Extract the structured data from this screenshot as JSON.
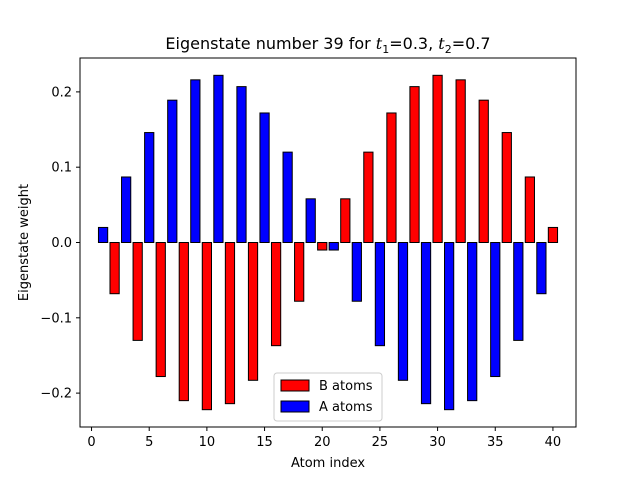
{
  "chart_data": {
    "type": "bar",
    "title": {
      "prefix": "Eigenstate number 39 for ",
      "t1_sym": "t",
      "t1_sub": "1",
      "t1_val": "=0.3, ",
      "t2_sym": "t",
      "t2_sub": "2",
      "t2_val": "=0.7"
    },
    "xlabel": "Atom index",
    "ylabel": "Eigenstate weight",
    "xlim": [
      -1.0,
      42.0
    ],
    "ylim": [
      -0.245,
      0.245
    ],
    "x_ticks": [
      0,
      5,
      10,
      15,
      20,
      25,
      30,
      35,
      40
    ],
    "x_tick_labels": [
      "0",
      "5",
      "10",
      "15",
      "20",
      "25",
      "30",
      "35",
      "40"
    ],
    "y_ticks": [
      -0.2,
      -0.1,
      0.0,
      0.1,
      0.2
    ],
    "y_tick_labels": [
      "−0.2",
      "−0.1",
      "0.0",
      "0.1",
      "0.2"
    ],
    "bar_width": 0.8,
    "legend_position": "lower center",
    "series": [
      {
        "name": "B atoms",
        "color": "#ff0000",
        "x": [
          2,
          4,
          6,
          8,
          10,
          12,
          14,
          16,
          18,
          20,
          22,
          24,
          26,
          28,
          30,
          32,
          34,
          36,
          38,
          40
        ],
        "values": [
          -0.068,
          -0.13,
          -0.178,
          -0.21,
          -0.222,
          -0.214,
          -0.183,
          -0.137,
          -0.078,
          -0.01,
          0.058,
          0.12,
          0.172,
          0.207,
          0.222,
          0.216,
          0.189,
          0.146,
          0.087,
          0.02
        ]
      },
      {
        "name": "A atoms",
        "color": "#0000ff",
        "x": [
          1,
          3,
          5,
          7,
          9,
          11,
          13,
          15,
          17,
          19,
          21,
          23,
          25,
          27,
          29,
          31,
          33,
          35,
          37,
          39
        ],
        "values": [
          0.02,
          0.087,
          0.146,
          0.189,
          0.216,
          0.222,
          0.207,
          0.172,
          0.12,
          0.058,
          -0.01,
          -0.078,
          -0.137,
          -0.183,
          -0.214,
          -0.222,
          -0.21,
          -0.178,
          -0.13,
          -0.068
        ]
      }
    ]
  }
}
